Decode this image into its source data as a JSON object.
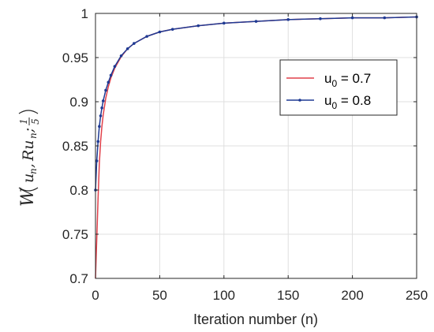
{
  "chart_data": {
    "type": "line",
    "title": "",
    "xlabel": "Iteration number (n)",
    "ylabel_parts": {
      "w": "W",
      "u": "u",
      "n1": "n",
      "sep": ",",
      "r": "Ru",
      "n2": "n",
      "sep2": ";",
      "num": "1",
      "den": "5"
    },
    "xlim": [
      0,
      250
    ],
    "ylim": [
      0.7,
      1
    ],
    "xticks": [
      0,
      50,
      100,
      150,
      200,
      250
    ],
    "yticks": [
      0.7,
      0.75,
      0.8,
      0.85,
      0.9,
      0.95,
      1
    ],
    "ytick_labels": [
      "0.7",
      "0.75",
      "0.8",
      "0.85",
      "0.9",
      "0.95",
      "1"
    ],
    "grid": true,
    "legend_position": "center-right",
    "series": [
      {
        "name": "u0 = 0.7",
        "label_base": "u",
        "label_sub": "0",
        "label_value": " = 0.7",
        "color": "#e0404a",
        "marker": "none",
        "x": [
          0,
          1,
          2,
          3,
          4,
          5,
          6,
          8,
          10,
          12,
          15,
          20,
          25,
          30,
          40,
          50,
          60,
          80,
          100,
          125,
          150,
          175,
          200,
          225,
          250
        ],
        "y": [
          0.7,
          0.745,
          0.79,
          0.83,
          0.855,
          0.872,
          0.885,
          0.904,
          0.917,
          0.927,
          0.938,
          0.951,
          0.96,
          0.966,
          0.974,
          0.979,
          0.982,
          0.986,
          0.989,
          0.991,
          0.993,
          0.994,
          0.995,
          0.995,
          0.996
        ]
      },
      {
        "name": "u0 = 0.8",
        "label_base": "u",
        "label_sub": "0",
        "label_value": " = 0.8",
        "color": "#1f3a93",
        "marker": "dot",
        "x": [
          0,
          1,
          2,
          3,
          4,
          5,
          6,
          8,
          10,
          12,
          15,
          20,
          25,
          30,
          40,
          50,
          60,
          80,
          100,
          125,
          150,
          175,
          200,
          225,
          250
        ],
        "y": [
          0.8,
          0.833,
          0.855,
          0.872,
          0.884,
          0.893,
          0.901,
          0.913,
          0.922,
          0.93,
          0.94,
          0.952,
          0.96,
          0.966,
          0.974,
          0.979,
          0.982,
          0.986,
          0.989,
          0.991,
          0.993,
          0.994,
          0.995,
          0.995,
          0.996
        ]
      }
    ]
  }
}
